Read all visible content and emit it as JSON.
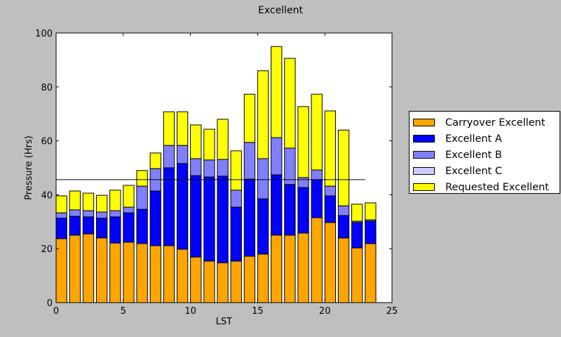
{
  "chart_data": {
    "type": "bar",
    "stacked": true,
    "title": "Excellent",
    "xlabel": "LST",
    "ylabel": "Pressure (Hrs)",
    "xlim": [
      0,
      25
    ],
    "ylim": [
      0,
      100
    ],
    "xticks": [
      "0",
      "5",
      "10",
      "15",
      "20",
      "25"
    ],
    "yticks": [
      "0",
      "20",
      "40",
      "60",
      "80",
      "100"
    ],
    "x": [
      0,
      1,
      2,
      3,
      4,
      5,
      6,
      7,
      8,
      9,
      10,
      11,
      12,
      13,
      14,
      15,
      16,
      17,
      18,
      19,
      20,
      21,
      22,
      23
    ],
    "series": [
      {
        "name": "Carryover Excellent",
        "color": "#ffa500",
        "values": [
          23.7,
          25,
          25.5,
          24,
          22.1,
          22.4,
          21.9,
          21.1,
          21.1,
          19.8,
          16.9,
          15.4,
          14.8,
          15.4,
          17.2,
          18,
          25,
          25,
          25.8,
          31.5,
          29.7,
          24,
          20.3,
          21.9
        ]
      },
      {
        "name": "Excellent A",
        "color": "#0000ff",
        "values": [
          7.6,
          7,
          6.3,
          7.3,
          9.7,
          10.9,
          12.7,
          20.3,
          28.9,
          31.8,
          30.2,
          31.2,
          32.1,
          20,
          28.6,
          20.5,
          22.4,
          18.8,
          16.9,
          14.1,
          9.9,
          8.3,
          9.4,
          8.3
        ]
      },
      {
        "name": "Excellent B",
        "color": "#8080ff",
        "values": [
          2,
          2.4,
          2.3,
          2.3,
          2.3,
          2.1,
          8.6,
          8.3,
          8.3,
          6.7,
          6.3,
          6.3,
          6.2,
          6.3,
          13.6,
          14.9,
          13.8,
          13.5,
          3.7,
          3.6,
          3.6,
          3.6,
          0.5,
          0.5
        ]
      },
      {
        "name": "Excellent C",
        "color": "#ccccff",
        "values": [
          0,
          0,
          0,
          0,
          0,
          0,
          0,
          0,
          0,
          0,
          0,
          0,
          0,
          0,
          0,
          0,
          0,
          0,
          0,
          0,
          0,
          0,
          0,
          0
        ]
      },
      {
        "name": "Requested Excellent",
        "color": "#ffff00",
        "values": [
          6.3,
          7,
          6.5,
          6.2,
          7.6,
          8.1,
          5.8,
          5.8,
          12.5,
          12.5,
          12.5,
          11.4,
          14.9,
          14.6,
          17.9,
          32.6,
          33.8,
          33.3,
          26.3,
          28.1,
          27.9,
          28.1,
          6.3,
          6.3
        ]
      }
    ],
    "bar_width": 0.8,
    "reference_line": {
      "y": 45.6,
      "x_range": [
        0,
        23
      ]
    },
    "legend_placement": "right-outside",
    "grid": false
  }
}
